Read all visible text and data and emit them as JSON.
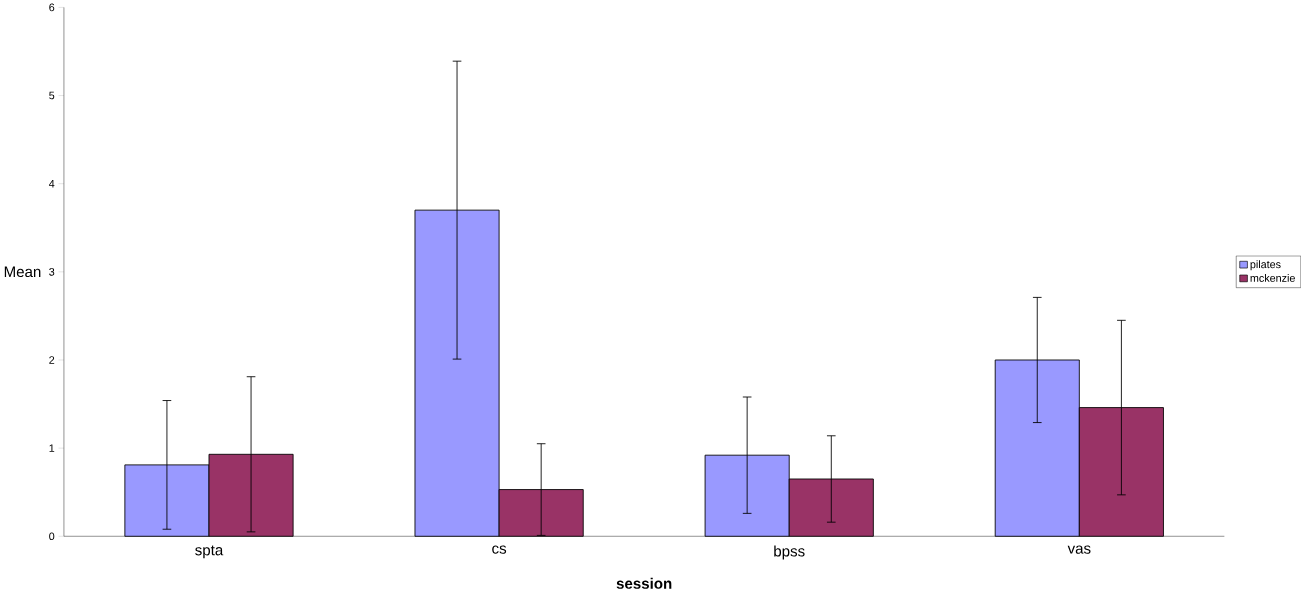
{
  "chart_data": {
    "type": "bar",
    "xlabel": "session",
    "ylabel": "Mean",
    "categories": [
      "spta",
      "cs",
      "bpss",
      "vas"
    ],
    "series": [
      {
        "name": "pilates",
        "color": "#9999ff",
        "values": [
          0.81,
          3.7,
          0.92,
          2.0
        ],
        "errors": [
          0.73,
          1.69,
          0.66,
          0.71
        ]
      },
      {
        "name": "mckenzie",
        "color": "#993366",
        "values": [
          0.93,
          0.53,
          0.65,
          1.46
        ],
        "errors": [
          0.88,
          0.52,
          0.49,
          0.99
        ]
      }
    ],
    "ylim": [
      0,
      6
    ],
    "yticks": [
      0,
      1,
      2,
      3,
      4,
      5,
      6
    ],
    "grid": false,
    "legend": "right"
  }
}
